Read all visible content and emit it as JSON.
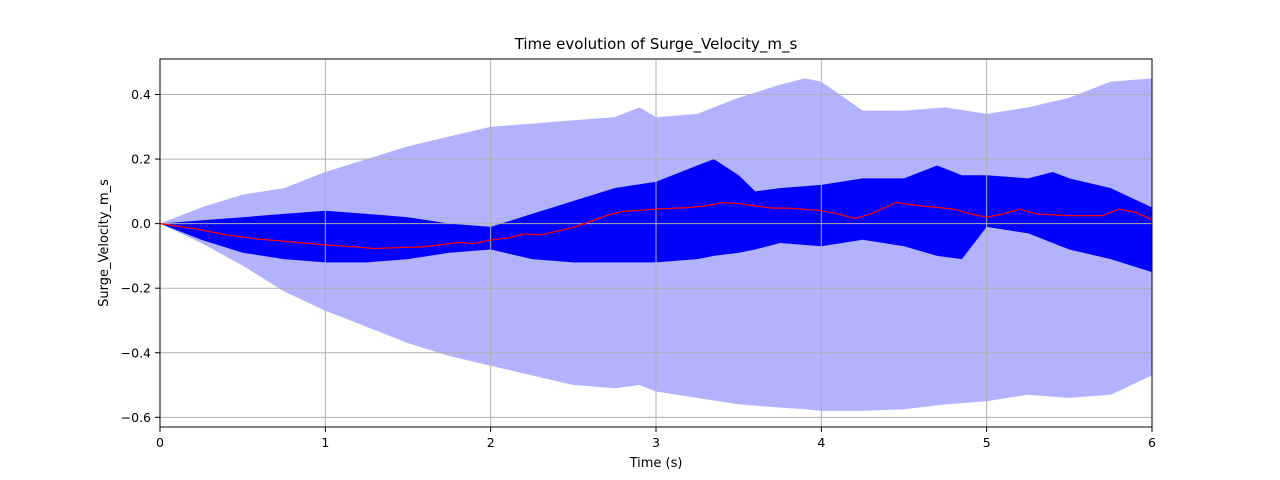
{
  "chart_data": {
    "type": "area",
    "title": "Time evolution of Surge_Velocity_m_s",
    "xlabel": "Time (s)",
    "ylabel": "Surge_Velocity_m_s",
    "xlim": [
      0,
      6
    ],
    "ylim": [
      -0.63,
      0.51
    ],
    "xticks": [
      0,
      1,
      2,
      3,
      4,
      5,
      6
    ],
    "yticks": [
      -0.6,
      -0.4,
      -0.2,
      0.0,
      0.2,
      0.4
    ],
    "grid": true,
    "colors": {
      "outer_band": "#b2b2ff",
      "inner_band": "#0000ff",
      "mean_line": "#ff0000"
    },
    "outer_band": {
      "x": [
        0,
        0.25,
        0.5,
        0.75,
        1.0,
        1.25,
        1.5,
        1.75,
        2.0,
        2.25,
        2.5,
        2.75,
        2.9,
        3.0,
        3.25,
        3.5,
        3.75,
        3.9,
        4.0,
        4.25,
        4.5,
        4.75,
        5.0,
        5.25,
        5.5,
        5.75,
        6.0
      ],
      "upper": [
        0,
        0.05,
        0.09,
        0.11,
        0.16,
        0.2,
        0.24,
        0.27,
        0.3,
        0.31,
        0.32,
        0.33,
        0.36,
        0.33,
        0.34,
        0.39,
        0.43,
        0.45,
        0.44,
        0.35,
        0.35,
        0.36,
        0.34,
        0.36,
        0.39,
        0.44,
        0.45
      ],
      "lower": [
        0,
        -0.06,
        -0.13,
        -0.21,
        -0.27,
        -0.32,
        -0.37,
        -0.41,
        -0.44,
        -0.47,
        -0.5,
        -0.51,
        -0.5,
        -0.52,
        -0.54,
        -0.56,
        -0.57,
        -0.575,
        -0.58,
        -0.58,
        -0.575,
        -0.56,
        -0.55,
        -0.53,
        -0.54,
        -0.53,
        -0.47
      ]
    },
    "inner_band": {
      "x": [
        0,
        0.25,
        0.5,
        0.75,
        1.0,
        1.25,
        1.5,
        1.75,
        2.0,
        2.25,
        2.5,
        2.75,
        3.0,
        3.25,
        3.35,
        3.5,
        3.6,
        3.75,
        4.0,
        4.25,
        4.5,
        4.7,
        4.85,
        5.0,
        5.25,
        5.4,
        5.5,
        5.75,
        6.0
      ],
      "upper": [
        0,
        0.01,
        0.02,
        0.03,
        0.04,
        0.03,
        0.02,
        0.0,
        -0.01,
        0.03,
        0.07,
        0.11,
        0.13,
        0.18,
        0.2,
        0.15,
        0.1,
        0.11,
        0.12,
        0.14,
        0.14,
        0.18,
        0.15,
        0.15,
        0.14,
        0.16,
        0.14,
        0.11,
        0.05
      ],
      "lower": [
        0,
        -0.05,
        -0.09,
        -0.11,
        -0.12,
        -0.12,
        -0.11,
        -0.09,
        -0.08,
        -0.11,
        -0.12,
        -0.12,
        -0.12,
        -0.11,
        -0.1,
        -0.09,
        -0.08,
        -0.06,
        -0.07,
        -0.05,
        -0.07,
        -0.1,
        -0.11,
        -0.01,
        -0.03,
        -0.06,
        -0.08,
        -0.11,
        -0.15
      ]
    },
    "mean_line": {
      "x": [
        0,
        0.2,
        0.4,
        0.6,
        0.8,
        1.0,
        1.2,
        1.3,
        1.4,
        1.6,
        1.8,
        1.9,
        2.0,
        2.1,
        2.2,
        2.3,
        2.5,
        2.7,
        2.8,
        3.0,
        3.2,
        3.3,
        3.4,
        3.5,
        3.6,
        3.7,
        3.8,
        4.0,
        4.1,
        4.2,
        4.3,
        4.45,
        4.6,
        4.8,
        4.9,
        5.0,
        5.1,
        5.2,
        5.3,
        5.5,
        5.7,
        5.8,
        5.9,
        6.0
      ],
      "y": [
        0,
        -0.015,
        -0.035,
        -0.048,
        -0.057,
        -0.066,
        -0.073,
        -0.077,
        -0.075,
        -0.072,
        -0.058,
        -0.062,
        -0.05,
        -0.045,
        -0.032,
        -0.035,
        -0.012,
        0.025,
        0.038,
        0.045,
        0.05,
        0.055,
        0.065,
        0.062,
        0.055,
        0.048,
        0.048,
        0.04,
        0.03,
        0.016,
        0.03,
        0.065,
        0.055,
        0.045,
        0.03,
        0.02,
        0.03,
        0.045,
        0.03,
        0.025,
        0.025,
        0.045,
        0.035,
        0.012
      ]
    }
  }
}
